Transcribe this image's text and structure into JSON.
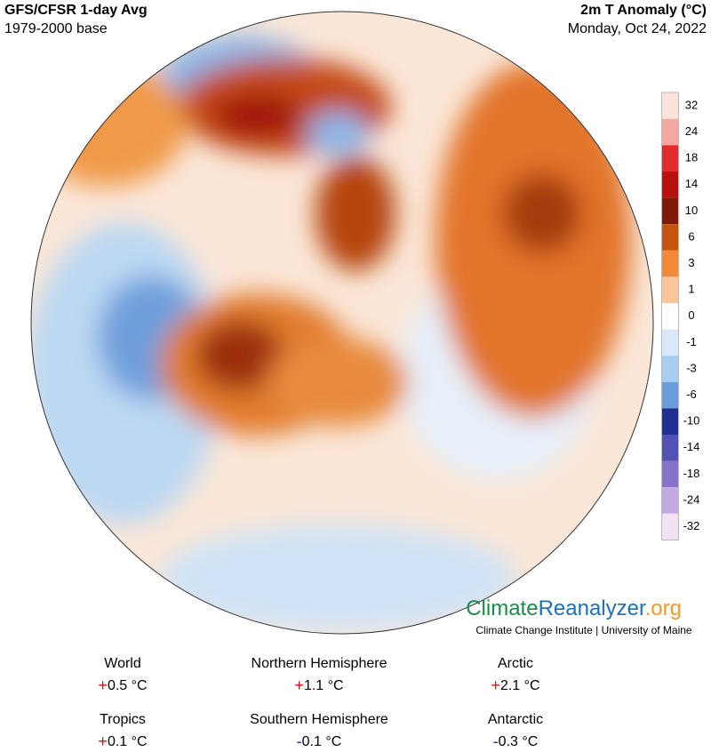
{
  "header": {
    "title": "GFS/CFSR 1-day Avg",
    "subtitle": "1979-2000 base",
    "variable": "2m T Anomaly (°C)",
    "date": "Monday, Oct 24, 2022"
  },
  "colorbar": {
    "labels": [
      "32",
      "24",
      "18",
      "14",
      "10",
      "6",
      "3",
      "1",
      "0",
      "-1",
      "-3",
      "-6",
      "-10",
      "-14",
      "-18",
      "-24",
      "-32"
    ],
    "colors": [
      "#fbe3dc",
      "#f3a7a0",
      "#e52a2a",
      "#b5120f",
      "#7e1a08",
      "#c4540f",
      "#f08a3a",
      "#f9c69c",
      "#ffffff",
      "#d9e8f8",
      "#a9cdf1",
      "#6b9ddd",
      "#1f2f8f",
      "#5252b2",
      "#8574c9",
      "#c3abe2",
      "#f3e3f2"
    ]
  },
  "logo": {
    "parts": [
      {
        "text": "Climate",
        "color": "#1b8c48"
      },
      {
        "text": "Reanalyzer",
        "color": "#1f6fb5"
      },
      {
        "text": ".org",
        "color": "#f09a2a"
      }
    ],
    "credit": "Climate Change Institute | University of Maine"
  },
  "stats": [
    {
      "label": "World",
      "sign": "+",
      "value": "0.5 °C"
    },
    {
      "label": "Northern Hemisphere",
      "sign": "+",
      "value": "1.1 °C"
    },
    {
      "label": "Arctic",
      "sign": "+",
      "value": "2.1 °C"
    },
    {
      "label": "Tropics",
      "sign": "+",
      "value": "0.1 °C"
    },
    {
      "label": "Southern Hemisphere",
      "sign": "-",
      "value": "0.1 °C"
    },
    {
      "label": "Antarctic",
      "sign": "-",
      "value": "0.3 °C"
    }
  ]
}
